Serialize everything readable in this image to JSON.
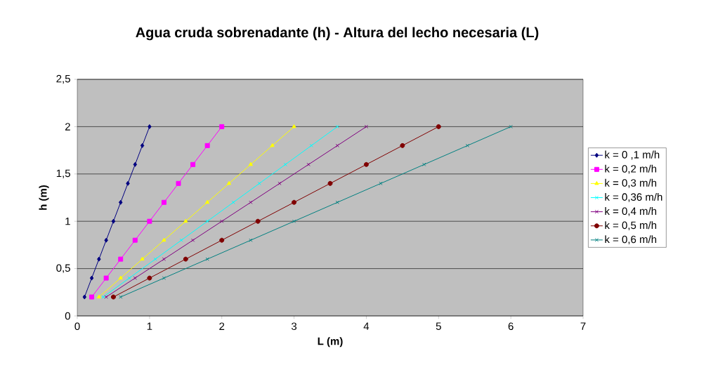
{
  "chart_data": {
    "type": "line",
    "title": "Agua cruda sobrenadante (h) - Altura del lecho necesaria (L)",
    "xlabel": "L (m)",
    "ylabel": "h (m)",
    "xlim": [
      0,
      7
    ],
    "ylim": [
      0,
      2.5
    ],
    "xticks": [
      0,
      1,
      2,
      3,
      4,
      5,
      6,
      7
    ],
    "yticks": [
      0,
      {
        "value": 0.5,
        "label": "0,5"
      },
      1,
      {
        "value": 1.5,
        "label": "1,5"
      },
      2,
      {
        "value": 2.5,
        "label": "2,5"
      }
    ],
    "grid": "y",
    "legend": "right",
    "series": [
      {
        "name": "k = 0 ,1 m/h",
        "color": "#000080",
        "marker": "diamond",
        "x": [
          0.1,
          0.2,
          0.3,
          0.4,
          0.5,
          0.6,
          0.7,
          0.8,
          0.9,
          1.0
        ],
        "values": [
          0.2,
          0.4,
          0.6,
          0.8,
          1.0,
          1.2,
          1.4,
          1.6,
          1.8,
          2.0
        ]
      },
      {
        "name": "k = 0,2 m/h",
        "color": "#ff00ff",
        "marker": "square",
        "x": [
          0.2,
          0.4,
          0.6,
          0.8,
          1.0,
          1.2,
          1.4,
          1.6,
          1.8,
          2.0
        ],
        "values": [
          0.2,
          0.4,
          0.6,
          0.8,
          1.0,
          1.2,
          1.4,
          1.6,
          1.8,
          2.0
        ]
      },
      {
        "name": "k = 0,3 m/h",
        "color": "#ffff00",
        "marker": "triangle",
        "x": [
          0.3,
          0.6,
          0.9,
          1.2,
          1.5,
          1.8,
          2.1,
          2.4,
          2.7,
          3.0
        ],
        "values": [
          0.2,
          0.4,
          0.6,
          0.8,
          1.0,
          1.2,
          1.4,
          1.6,
          1.8,
          2.0
        ]
      },
      {
        "name": "k = 0,36 m/h",
        "color": "#00ffff",
        "marker": "cross",
        "x": [
          0.36,
          0.72,
          1.08,
          1.44,
          1.8,
          2.16,
          2.52,
          2.88,
          3.24,
          3.6
        ],
        "values": [
          0.2,
          0.4,
          0.6,
          0.8,
          1.0,
          1.2,
          1.4,
          1.6,
          1.8,
          2.0
        ]
      },
      {
        "name": "k = 0,4 m/h",
        "color": "#800080",
        "marker": "cross",
        "x": [
          0.4,
          0.8,
          1.2,
          1.6,
          2.0,
          2.4,
          2.8,
          3.2,
          3.6,
          4.0
        ],
        "values": [
          0.2,
          0.4,
          0.6,
          0.8,
          1.0,
          1.2,
          1.4,
          1.6,
          1.8,
          2.0
        ]
      },
      {
        "name": "k = 0,5 m/h",
        "color": "#800000",
        "marker": "circle",
        "x": [
          0.5,
          1.0,
          1.5,
          2.0,
          2.5,
          3.0,
          3.5,
          4.0,
          4.5,
          5.0
        ],
        "values": [
          0.2,
          0.4,
          0.6,
          0.8,
          1.0,
          1.2,
          1.4,
          1.6,
          1.8,
          2.0
        ]
      },
      {
        "name": "k = 0,6 m/h",
        "color": "#008080",
        "marker": "cross",
        "x": [
          0.6,
          1.2,
          1.8,
          2.4,
          3.0,
          3.6,
          4.2,
          4.8,
          5.4,
          6.0
        ],
        "values": [
          0.2,
          0.4,
          0.6,
          0.8,
          1.0,
          1.2,
          1.4,
          1.6,
          1.8,
          2.0
        ]
      }
    ]
  }
}
